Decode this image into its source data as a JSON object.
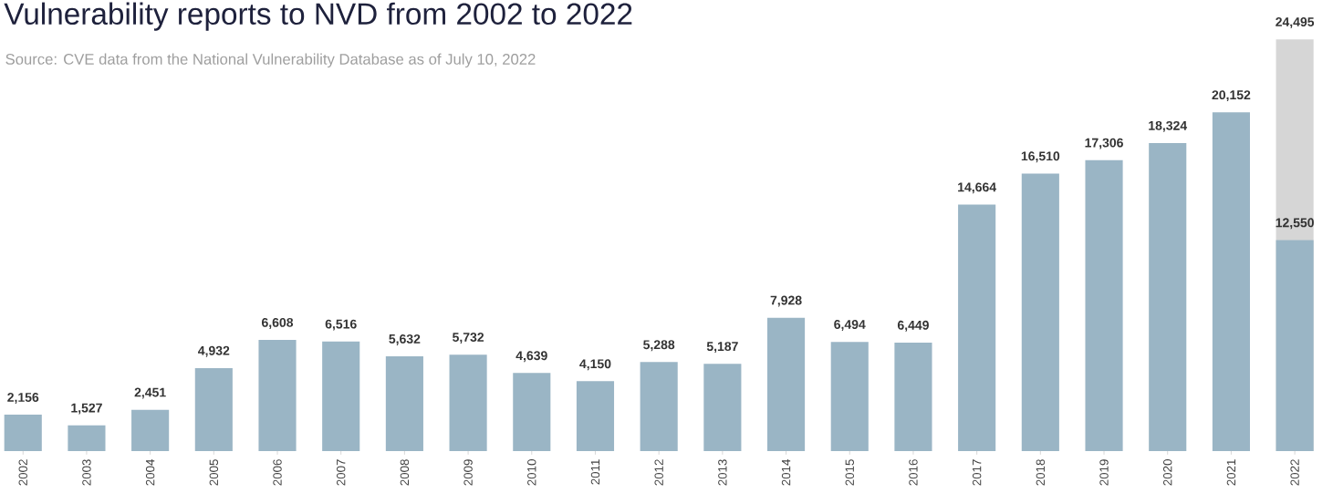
{
  "chart_data": {
    "type": "bar",
    "title": "Vulnerability reports to NVD from 2002 to 2022",
    "subtitle": "Source: CVE data from the National Vulnerability Database as of July 10, 2022",
    "categories": [
      "2002",
      "2003",
      "2004",
      "2005",
      "2006",
      "2007",
      "2008",
      "2009",
      "2010",
      "2011",
      "2012",
      "2013",
      "2014",
      "2015",
      "2016",
      "2017",
      "2018",
      "2019",
      "2020",
      "2021",
      "2022"
    ],
    "series": [
      {
        "color": "#9ab5c5",
        "values": [
          2156,
          1527,
          2451,
          4932,
          6608,
          6516,
          5632,
          5732,
          4639,
          4150,
          5288,
          5187,
          7928,
          6494,
          6449,
          14664,
          16510,
          17306,
          18324,
          20152,
          12550
        ],
        "value_labels": [
          "2,156",
          "1,527",
          "2,451",
          "4,932",
          "6,608",
          "6,516",
          "5,632",
          "5,732",
          "4,639",
          "4,150",
          "5,288",
          "5,187",
          "7,928",
          "6,494",
          "6,449",
          "14,664",
          "16,510",
          "17,306",
          "18,324",
          "20,152",
          "12,550"
        ]
      },
      {
        "color": "#d6d6d6",
        "values": [
          null,
          null,
          null,
          null,
          null,
          null,
          null,
          null,
          null,
          null,
          null,
          null,
          null,
          null,
          null,
          null,
          null,
          null,
          null,
          null,
          24495
        ],
        "value_labels": [
          null,
          null,
          null,
          null,
          null,
          null,
          null,
          null,
          null,
          null,
          null,
          null,
          null,
          null,
          null,
          null,
          null,
          null,
          null,
          null,
          "24,495"
        ]
      }
    ]
  }
}
